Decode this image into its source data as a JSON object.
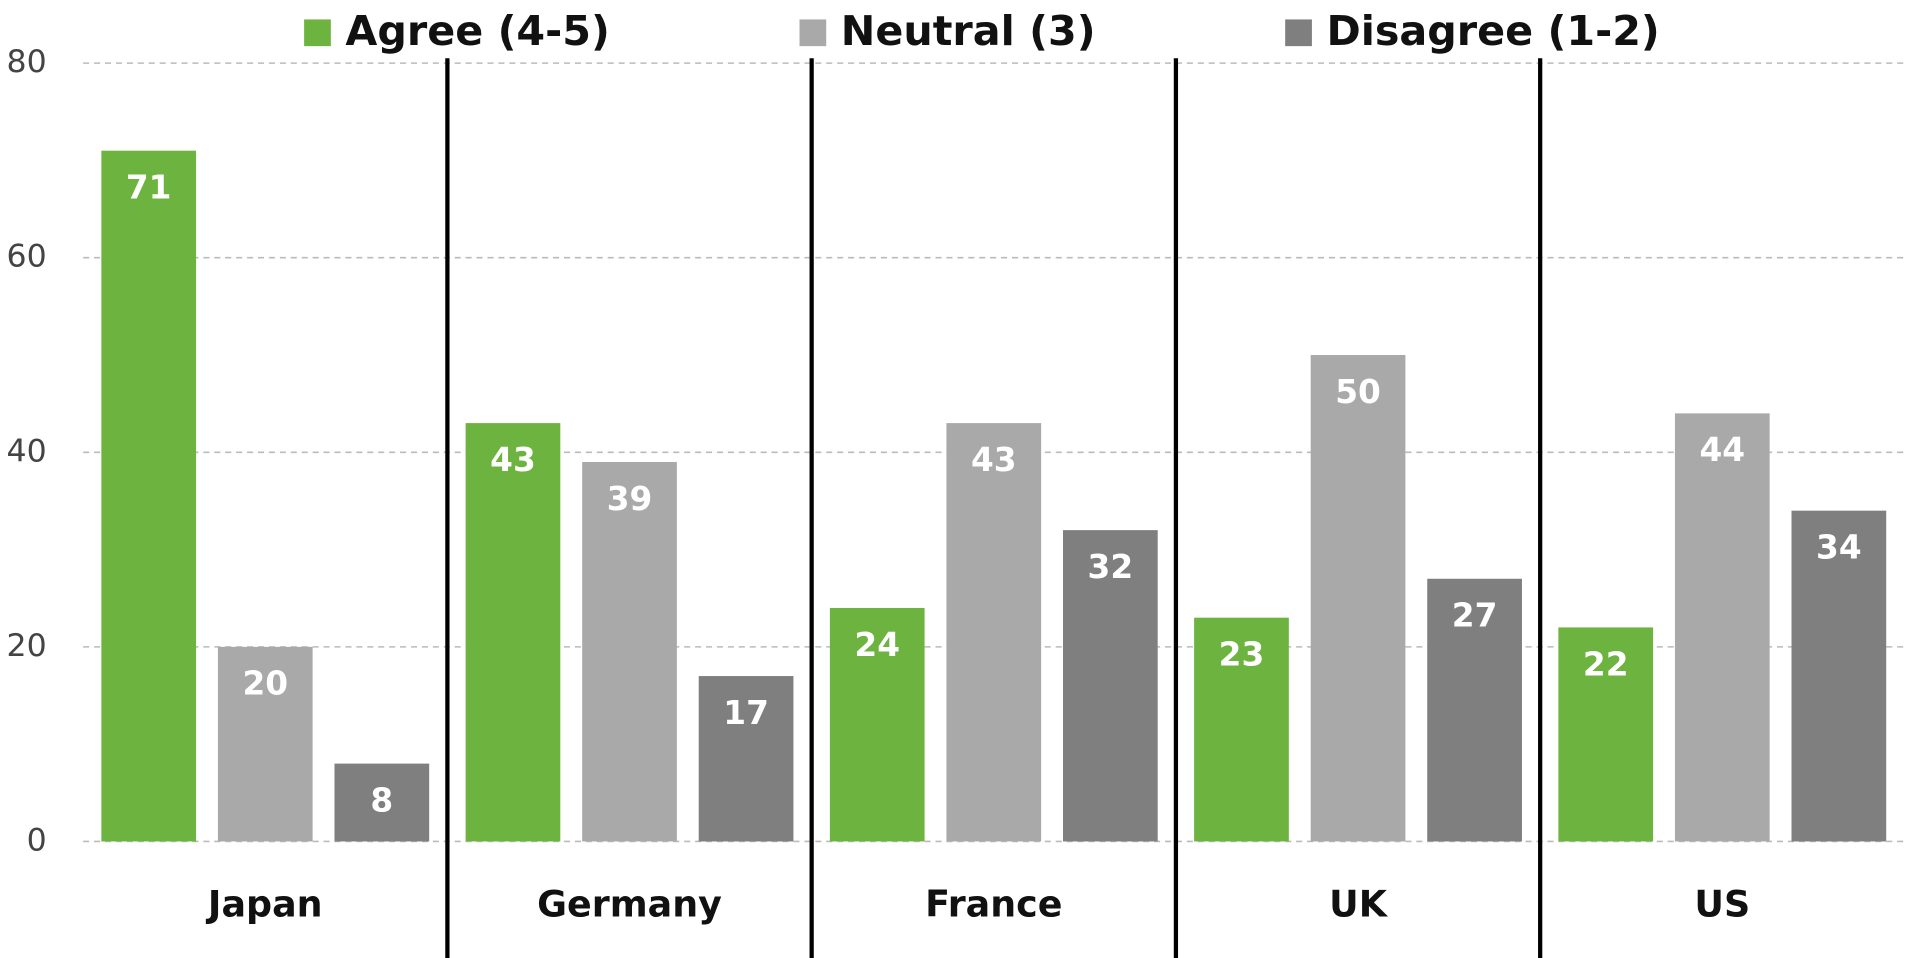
{
  "chart_data": {
    "type": "bar",
    "categories": [
      "Japan",
      "Germany",
      "France",
      "UK",
      "US"
    ],
    "series": [
      {
        "name": "Agree (4-5)",
        "color": "#6db33f",
        "values": [
          71,
          43,
          24,
          23,
          22
        ]
      },
      {
        "name": "Neutral (3)",
        "color": "#a9a9a9",
        "values": [
          20,
          39,
          43,
          50,
          44
        ]
      },
      {
        "name": "Disagree (1-2)",
        "color": "#7f7f7f",
        "values": [
          8,
          17,
          32,
          27,
          34
        ]
      }
    ],
    "ylim": [
      0,
      80
    ],
    "yticks": [
      0,
      20,
      40,
      60,
      80
    ],
    "grid": true,
    "legend": "top"
  }
}
